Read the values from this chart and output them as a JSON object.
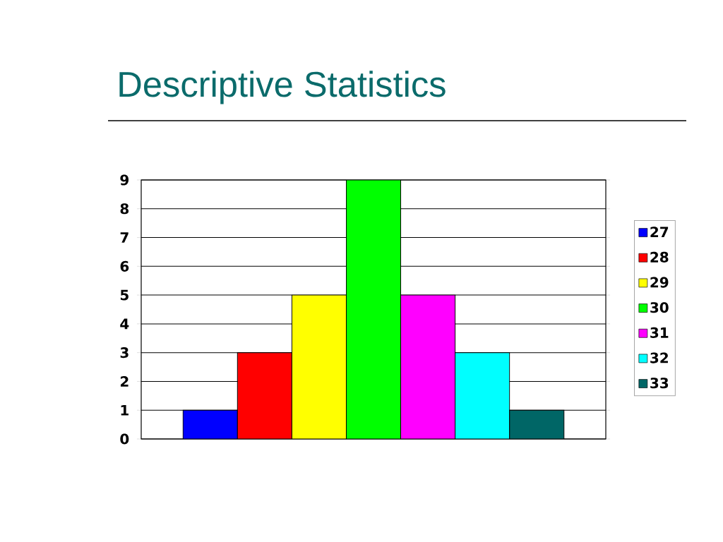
{
  "chart_data": {
    "type": "bar",
    "title": "Descriptive Statistics",
    "categories": [
      null
    ],
    "series": [
      {
        "name": "27",
        "color": "#0000ff",
        "values": [
          1
        ]
      },
      {
        "name": "28",
        "color": "#ff0000",
        "values": [
          3
        ]
      },
      {
        "name": "29",
        "color": "#ffff00",
        "values": [
          5
        ]
      },
      {
        "name": "30",
        "color": "#00ff00",
        "values": [
          9
        ]
      },
      {
        "name": "31",
        "color": "#ff00ff",
        "values": [
          5
        ]
      },
      {
        "name": "32",
        "color": "#00ffff",
        "values": [
          3
        ]
      },
      {
        "name": "33",
        "color": "#006666",
        "values": [
          1
        ]
      }
    ],
    "ylim": [
      0,
      9
    ],
    "yticks": [
      0,
      1,
      2,
      3,
      4,
      5,
      6,
      7,
      8,
      9
    ],
    "grid": "y",
    "legend": "right"
  }
}
